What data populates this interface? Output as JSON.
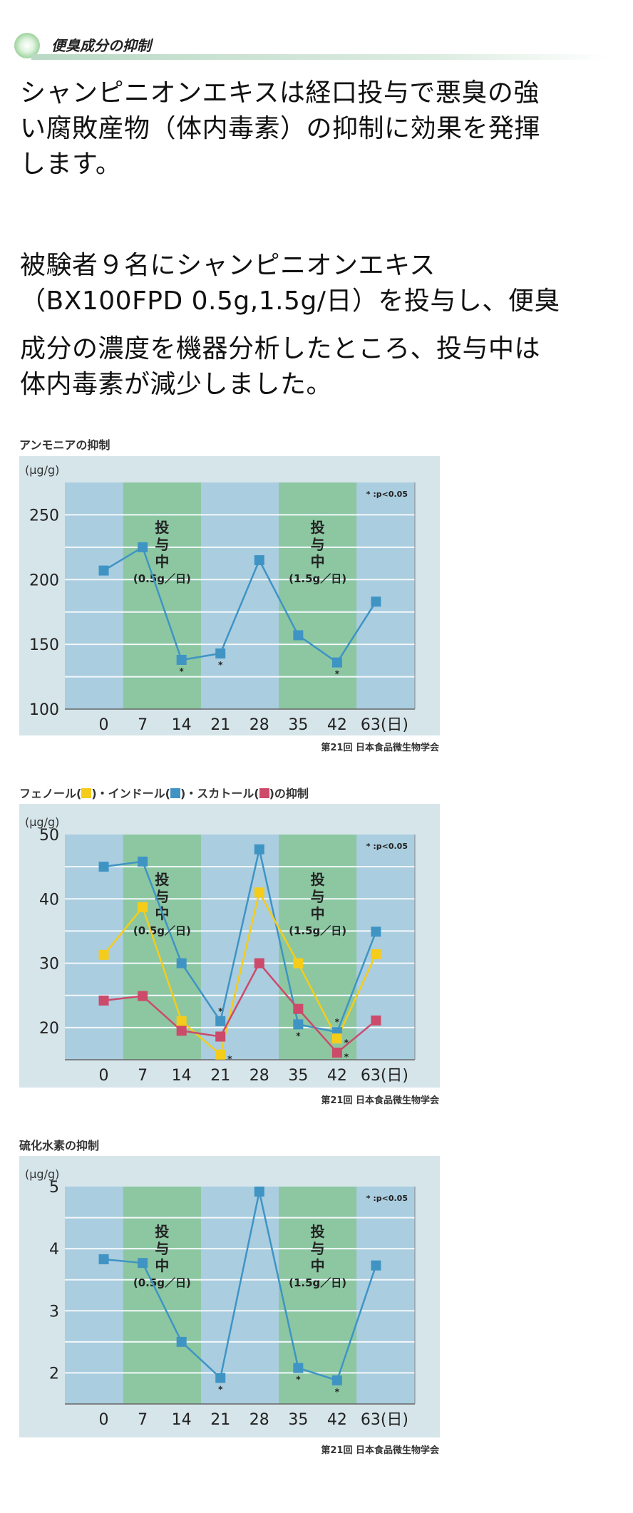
{
  "header": {
    "title": "便臭成分の抑制"
  },
  "paragraph1": {
    "lines": [
      "シャンピニオンエキスは経口投与で悪臭の強",
      "い腐敗産物（体内毒素）の抑制に効果を発揮",
      "します。"
    ]
  },
  "paragraph2": {
    "lines": [
      "被験者９名にシャンピニオンエキス",
      "（BX100FPD 0.5g,1.5g/日）を投与し、便臭",
      "成分の濃度を機器分析したところ、投与中は",
      "体内毒素が減少しました。"
    ]
  },
  "colors": {
    "blue": "#3f94c4",
    "yellow": "#f5cc1a",
    "red": "#cc4a6a",
    "band_blue": "#aacde0",
    "band_green": "#8cc7a2"
  },
  "chart_data": [
    {
      "type": "line",
      "title": "アンモニアの抑制",
      "ylabel": "(μg/g)",
      "categories": [
        "0",
        "7",
        "14",
        "21",
        "28",
        "35",
        "42",
        "63(日)"
      ],
      "ylim": [
        100,
        275
      ],
      "yticks": [
        "100",
        "150",
        "200",
        "250"
      ],
      "ytick_values": [
        100,
        150,
        200,
        250
      ],
      "grid_values": [
        125,
        150,
        175,
        200,
        225,
        250
      ],
      "series": [
        {
          "name": "アンモニア",
          "color": "#3f94c4",
          "values": [
            207,
            225,
            138,
            143,
            215,
            157,
            136,
            183
          ],
          "significant": [
            false,
            false,
            true,
            true,
            false,
            false,
            true,
            false
          ],
          "star_pos": "below"
        }
      ],
      "dosing": [
        {
          "label": "投与中",
          "dose": "(0.5g／日)"
        },
        {
          "label": "投与中",
          "dose": "(1.5g／日)"
        }
      ],
      "note": "* :p<0.05",
      "source": "第21回 日本食品微生物学会"
    },
    {
      "type": "line",
      "title_parts": [
        "フェノール(",
        ")・インドール(",
        ")・スカトール(",
        ")の抑制"
      ],
      "ylabel": "(μg/g)",
      "categories": [
        "0",
        "7",
        "14",
        "21",
        "28",
        "35",
        "42",
        "63(日)"
      ],
      "ylim": [
        15,
        50
      ],
      "yticks": [
        "20",
        "30",
        "40",
        "50"
      ],
      "ytick_values": [
        20,
        30,
        40,
        50
      ],
      "grid_values": [
        20,
        25,
        30,
        35,
        40,
        45
      ],
      "series": [
        {
          "name": "インドール",
          "color": "#3f94c4",
          "values": [
            45,
            45.8,
            30,
            21,
            47.7,
            20.5,
            19.3,
            34.9
          ],
          "significant": [
            false,
            false,
            false,
            true,
            false,
            true,
            true,
            false
          ],
          "star_pos_list": [
            "",
            "",
            "",
            "above",
            "",
            "below",
            "above",
            ""
          ]
        },
        {
          "name": "フェノール",
          "color": "#f5cc1a",
          "values": [
            31.3,
            38.7,
            21,
            15.8,
            41,
            30,
            18.3,
            31.4
          ],
          "significant": [
            false,
            false,
            false,
            true,
            false,
            false,
            true,
            false
          ],
          "star_pos": "right"
        },
        {
          "name": "スカトール",
          "color": "#cc4a6a",
          "values": [
            24.2,
            24.9,
            19.5,
            18.6,
            30,
            22.9,
            16.1,
            21.1
          ],
          "significant": [
            false,
            false,
            false,
            false,
            false,
            false,
            true,
            false
          ],
          "star_pos": "right"
        }
      ],
      "dosing": [
        {
          "label": "投与中",
          "dose": "(0.5g／日)"
        },
        {
          "label": "投与中",
          "dose": "(1.5g／日)"
        }
      ],
      "note": "* :p<0.05",
      "source": "第21回 日本食品微生物学会"
    },
    {
      "type": "line",
      "title": "硫化水素の抑制",
      "ylabel": "(μg/g)",
      "categories": [
        "0",
        "7",
        "14",
        "21",
        "28",
        "35",
        "42",
        "63(日)"
      ],
      "ylim": [
        1.5,
        5
      ],
      "yticks": [
        "2",
        "3",
        "4",
        "5"
      ],
      "ytick_values": [
        2,
        3,
        4,
        5
      ],
      "grid_values": [
        2,
        2.5,
        3,
        3.5,
        4,
        4.5
      ],
      "series": [
        {
          "name": "硫化水素",
          "color": "#3f94c4",
          "values": [
            3.83,
            3.77,
            2.5,
            1.92,
            4.92,
            2.08,
            1.88,
            3.73
          ],
          "significant": [
            false,
            false,
            false,
            true,
            false,
            true,
            true,
            false
          ],
          "star_pos": "below"
        }
      ],
      "dosing": [
        {
          "label": "投与中",
          "dose": "(0.5g／日)"
        },
        {
          "label": "投与中",
          "dose": "(1.5g／日)"
        }
      ],
      "note": "* :p<0.05",
      "source": "第21回 日本食品微生物学会"
    }
  ]
}
